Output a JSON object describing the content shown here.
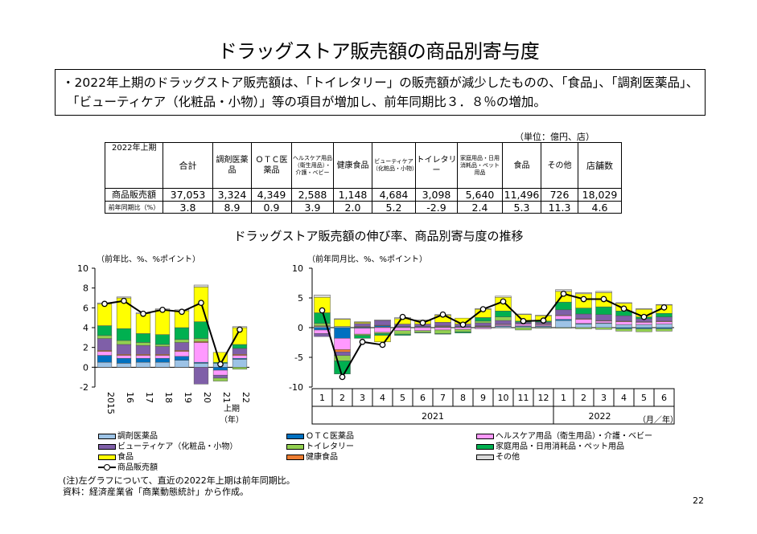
{
  "page_title": "ドラッグストア販売額の商品別寄与度",
  "summary": {
    "line1": "・2022年上期のドラッグストア販売額は、「トイレタリー」の販売額が減少したものの、「食品」、「調剤医薬品」、",
    "line2": "「ビューティケア（化粧品・小物）」等の項目が増加し、前年同期比３．８％の増加。"
  },
  "table": {
    "unit": "（単位：億円、店）",
    "period_label": "2022年上期",
    "headers": [
      "合計",
      "調剤医薬品",
      "ＯＴＣ医薬品",
      "ヘルスケア用品（衛生用品）・介護・ベビー",
      "健康食品",
      "ビューティケア（化粧品・小物）",
      "トイレタリー",
      "家庭用品・日用消耗品・ペット用品",
      "食品",
      "その他",
      "店舗数"
    ],
    "rows": [
      {
        "label": "商品販売額",
        "values": [
          "37,053",
          "3,324",
          "4,349",
          "2,588",
          "1,148",
          "4,684",
          "3,098",
          "5,640",
          "11,496",
          "726",
          "18,029"
        ]
      },
      {
        "label": "前年同期比（%）",
        "values": [
          "3.8",
          "8.9",
          "0.9",
          "3.9",
          "2.0",
          "5.2",
          "-2.9",
          "2.4",
          "5.3",
          "11.3",
          "4.6"
        ]
      }
    ]
  },
  "chart_title": "ドラッグストア販売額の伸び率、商品別寄与度の推移",
  "colors": {
    "調剤医薬品": "#9DC3E6",
    "ＯＴＣ医薬品": "#0070C0",
    "ヘルスケア用品（衛生用品）・介護・ベビー": "#FF99FF",
    "ビューティケア（化粧品・小物）": "#7F5FA8",
    "トイレタリー": "#92D050",
    "家庭用品・日用消耗品・ペット用品": "#00B050",
    "食品": "#FFFF00",
    "健康食品": "#ED7D31",
    "その他": "#D9D9D9",
    "line": "#000000"
  },
  "chart_data": [
    {
      "type": "bar",
      "stacked": true,
      "ylabel": "（前年比、%、%ポイント）",
      "ylim": [
        -2,
        10
      ],
      "yticks": [
        -2,
        0,
        2,
        4,
        6,
        8,
        10
      ],
      "categories": [
        "2015",
        "16",
        "17",
        "18",
        "19",
        "20",
        "21",
        "22"
      ],
      "x_sublabel": "上期",
      "x_unit": "（年）",
      "series": [
        {
          "name": "調剤医薬品",
          "values": [
            0.5,
            0.4,
            0.5,
            0.5,
            0.7,
            0.4,
            0.4,
            0.8
          ]
        },
        {
          "name": "ＯＴＣ医薬品",
          "values": [
            0.7,
            0.5,
            0.4,
            0.4,
            0.4,
            0.1,
            -0.3,
            0.1
          ]
        },
        {
          "name": "ヘルスケア用品（衛生用品）・介護・ベビー",
          "values": [
            0.4,
            0.3,
            0.3,
            0.3,
            0.5,
            2.0,
            -0.5,
            0.3
          ]
        },
        {
          "name": "健康食品",
          "values": [
            0.1,
            0.1,
            0.1,
            0.1,
            0.1,
            0.1,
            0.0,
            0.1
          ]
        },
        {
          "name": "ビューティケア（化粧品・小物）",
          "values": [
            1.2,
            1.0,
            0.9,
            0.8,
            0.8,
            -1.7,
            -0.3,
            0.6
          ]
        },
        {
          "name": "トイレタリー",
          "values": [
            0.3,
            0.4,
            0.3,
            0.2,
            0.3,
            0.3,
            -0.3,
            -0.2
          ]
        },
        {
          "name": "家庭用品・日用消耗品・ペット用品",
          "values": [
            1.0,
            1.2,
            0.9,
            1.0,
            1.2,
            1.7,
            0.1,
            0.4
          ]
        },
        {
          "name": "食品",
          "values": [
            2.2,
            3.1,
            2.0,
            2.5,
            1.7,
            3.5,
            1.0,
            1.7
          ]
        },
        {
          "name": "その他",
          "values": [
            0.1,
            0.1,
            0.1,
            0.1,
            0.1,
            0.2,
            0.0,
            0.1
          ]
        },
        {
          "name": "商品販売額",
          "type": "line",
          "values": [
            6.4,
            6.7,
            5.4,
            5.8,
            5.6,
            6.5,
            0.3,
            3.8
          ]
        }
      ]
    },
    {
      "type": "bar",
      "stacked": true,
      "ylabel": "（前年同月比、%、%ポイント）",
      "ylim": [
        -10,
        10
      ],
      "yticks": [
        -10,
        -5,
        0,
        5,
        10
      ],
      "categories": [
        "1",
        "2",
        "3",
        "4",
        "5",
        "6",
        "7",
        "8",
        "9",
        "10",
        "11",
        "12",
        "1",
        "2",
        "3",
        "4",
        "5",
        "6"
      ],
      "year_labels": [
        "2021",
        "2022"
      ],
      "x_unit": "（月／年）",
      "series": [
        {
          "name": "調剤医薬品",
          "values": [
            0.2,
            0.2,
            0.1,
            0.1,
            0.1,
            0.1,
            0.1,
            0.1,
            0.1,
            0.2,
            0.2,
            0.2,
            1.2,
            0.6,
            0.7,
            0.5,
            0.5,
            0.6
          ]
        },
        {
          "name": "ＯＴＣ医薬品",
          "values": [
            -0.4,
            -1.8,
            -0.1,
            0.2,
            0.1,
            0.1,
            0.1,
            0.1,
            0.1,
            0.1,
            0.1,
            0.1,
            0.2,
            0.1,
            0.1,
            -0.2,
            -0.2,
            -0.2
          ]
        },
        {
          "name": "ヘルスケア用品（衛生用品）・介護・ベビー",
          "values": [
            -0.6,
            -1.9,
            -1.0,
            -0.8,
            -0.5,
            -0.5,
            -0.4,
            -0.3,
            -0.2,
            0.2,
            0.3,
            0.2,
            0.6,
            0.7,
            0.3,
            0.5,
            0.4,
            0.4
          ]
        },
        {
          "name": "健康食品",
          "values": [
            0.1,
            -0.4,
            0.1,
            0.1,
            0.0,
            0.0,
            0.1,
            0.0,
            0.1,
            0.1,
            0.0,
            0.1,
            0.1,
            0.1,
            0.1,
            0.1,
            0.1,
            0.1
          ]
        },
        {
          "name": "ビューティケア（化粧品・小物）",
          "values": [
            -0.5,
            -0.6,
            0.5,
            0.8,
            0.4,
            0.4,
            0.6,
            0.4,
            0.5,
            0.6,
            0.3,
            0.3,
            0.9,
            0.8,
            1.0,
            0.9,
            0.5,
            0.7
          ]
        },
        {
          "name": "トイレタリー",
          "values": [
            0.4,
            -0.9,
            -0.2,
            -0.2,
            -0.6,
            -0.3,
            -0.6,
            -0.4,
            0.3,
            0.6,
            -0.4,
            -0.1,
            -0.1,
            -0.2,
            -0.3,
            -0.4,
            -0.5,
            -0.4
          ]
        },
        {
          "name": "家庭用品・日用消耗品・ペット用品",
          "values": [
            1.8,
            -2.2,
            -0.5,
            -0.3,
            -0.2,
            -0.1,
            -0.1,
            -0.2,
            0.6,
            1.0,
            0.2,
            0.2,
            1.3,
            1.0,
            1.3,
            0.8,
            0.3,
            0.6
          ]
        },
        {
          "name": "食品",
          "values": [
            2.6,
            1.2,
            0.2,
            -1.1,
            0.9,
            0.6,
            1.2,
            1.0,
            1.4,
            2.3,
            1.1,
            0.9,
            1.8,
            2.4,
            2.4,
            1.3,
            1.3,
            1.4
          ]
        },
        {
          "name": "その他",
          "values": [
            0.4,
            0.1,
            0.1,
            0.1,
            0.2,
            0.1,
            0.1,
            0.0,
            0.1,
            0.2,
            0.1,
            0.1,
            0.3,
            0.2,
            0.2,
            0.1,
            0.1,
            0.1
          ]
        },
        {
          "name": "商品販売額",
          "type": "line",
          "values": [
            2.9,
            -8.3,
            -2.4,
            -2.9,
            1.8,
            0.8,
            2.2,
            0.5,
            3.1,
            4.4,
            1.1,
            1.2,
            5.7,
            4.8,
            4.8,
            3.2,
            1.8,
            3.4
          ]
        }
      ]
    }
  ],
  "legend": [
    {
      "label": "調剤医薬品",
      "kind": "box"
    },
    {
      "label": "ＯＴＣ医薬品",
      "kind": "box"
    },
    {
      "label": "ヘルスケア用品（衛生用品）・介護・ベビー",
      "kind": "box"
    },
    {
      "label": "ビューティケア（化粧品・小物）",
      "kind": "box"
    },
    {
      "label": "トイレタリー",
      "kind": "box"
    },
    {
      "label": "家庭用品・日用消耗品・ペット用品",
      "kind": "box"
    },
    {
      "label": "食品",
      "kind": "box"
    },
    {
      "label": "健康食品",
      "kind": "box"
    },
    {
      "label": "その他",
      "kind": "box"
    },
    {
      "label": "商品販売額",
      "kind": "line"
    }
  ],
  "notes": {
    "note1": "(注)左グラフについて、直近の2022年上期は前年同期比。",
    "note2": "資料：経済産業省「商業動態統計」から作成。"
  },
  "page_number": "22"
}
